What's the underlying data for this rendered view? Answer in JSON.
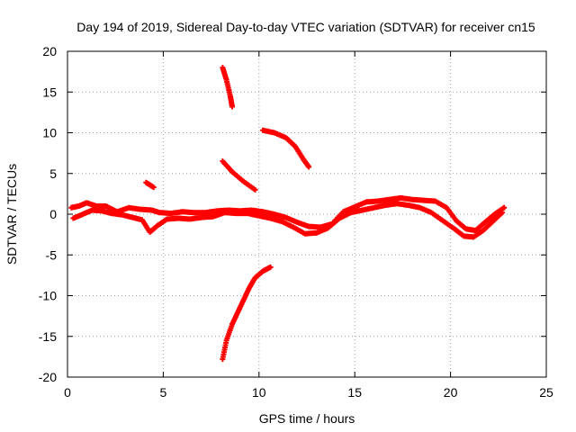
{
  "chart_data": {
    "type": "scatter",
    "title": "Day 194 of 2019, Sidereal Day-to-day VTEC variation (SDTVAR) for receiver cn15",
    "xlabel": "GPS time / hours",
    "ylabel": "SDTVAR / TECUs",
    "xlim": [
      0,
      25
    ],
    "ylim": [
      -20,
      20
    ],
    "xticks": [
      0,
      5,
      10,
      15,
      20,
      25
    ],
    "xtick_labels": [
      "0",
      "5",
      "10",
      "15",
      "20",
      "25"
    ],
    "yticks": [
      -20,
      -15,
      -10,
      -5,
      0,
      5,
      10,
      15,
      20
    ],
    "ytick_labels": [
      "-20",
      "-15",
      "-10",
      "-5",
      "0",
      "5",
      "10",
      "15",
      "20"
    ],
    "grid": true,
    "series_color": "#ff0000",
    "marker": "plus",
    "series": [
      {
        "name": "main-band-upper",
        "points": [
          [
            0.2,
            0.8
          ],
          [
            0.6,
            1.0
          ],
          [
            1.0,
            1.4
          ],
          [
            1.5,
            1.0
          ],
          [
            2.0,
            1.0
          ],
          [
            2.6,
            0.3
          ],
          [
            3.2,
            0.8
          ],
          [
            3.8,
            0.6
          ],
          [
            4.4,
            0.5
          ],
          [
            4.8,
            0.2
          ],
          [
            5.4,
            0.1
          ],
          [
            6.0,
            0.3
          ],
          [
            6.6,
            0.2
          ],
          [
            7.2,
            0.2
          ],
          [
            7.8,
            0.4
          ],
          [
            8.4,
            0.5
          ],
          [
            9.0,
            0.4
          ],
          [
            9.6,
            0.5
          ],
          [
            10.2,
            0.3
          ],
          [
            10.8,
            0.0
          ],
          [
            11.4,
            -0.4
          ],
          [
            12.0,
            -1.0
          ],
          [
            12.6,
            -1.5
          ],
          [
            13.2,
            -1.6
          ],
          [
            13.8,
            -1.2
          ],
          [
            14.4,
            0.3
          ],
          [
            15.0,
            0.9
          ],
          [
            15.6,
            1.5
          ],
          [
            16.2,
            1.6
          ],
          [
            16.8,
            1.8
          ],
          [
            17.4,
            2.0
          ],
          [
            18.0,
            1.8
          ],
          [
            18.6,
            1.7
          ],
          [
            19.2,
            1.6
          ],
          [
            19.8,
            0.8
          ],
          [
            20.3,
            -0.8
          ],
          [
            20.8,
            -1.8
          ],
          [
            21.3,
            -2.0
          ],
          [
            21.8,
            -1.0
          ],
          [
            22.3,
            0.0
          ],
          [
            22.8,
            0.8
          ]
        ]
      },
      {
        "name": "main-band-lower",
        "points": [
          [
            0.3,
            -0.5
          ],
          [
            0.8,
            0.0
          ],
          [
            1.3,
            0.5
          ],
          [
            1.8,
            0.4
          ],
          [
            2.3,
            0.1
          ],
          [
            2.9,
            -0.1
          ],
          [
            3.4,
            -0.4
          ],
          [
            3.9,
            -0.7
          ],
          [
            4.3,
            -2.2
          ],
          [
            4.7,
            -1.4
          ],
          [
            5.2,
            -0.6
          ],
          [
            5.8,
            -0.5
          ],
          [
            6.4,
            -0.6
          ],
          [
            7.0,
            -0.4
          ],
          [
            7.6,
            -0.3
          ],
          [
            8.2,
            0.2
          ],
          [
            8.8,
            0.1
          ],
          [
            9.4,
            0.1
          ],
          [
            10.0,
            -0.2
          ],
          [
            10.6,
            -0.5
          ],
          [
            11.2,
            -0.9
          ],
          [
            11.8,
            -1.6
          ],
          [
            12.4,
            -2.4
          ],
          [
            13.0,
            -2.3
          ],
          [
            13.6,
            -1.7
          ],
          [
            14.2,
            -0.5
          ],
          [
            14.8,
            0.2
          ],
          [
            15.4,
            0.5
          ],
          [
            16.0,
            0.8
          ],
          [
            16.6,
            1.1
          ],
          [
            17.2,
            1.3
          ],
          [
            17.8,
            1.1
          ],
          [
            18.4,
            0.8
          ],
          [
            19.0,
            0.2
          ],
          [
            19.6,
            -0.8
          ],
          [
            20.2,
            -1.8
          ],
          [
            20.7,
            -2.7
          ],
          [
            21.2,
            -2.8
          ],
          [
            21.7,
            -2.0
          ],
          [
            22.2,
            -0.9
          ],
          [
            22.7,
            0.2
          ]
        ]
      },
      {
        "name": "arc-low",
        "points": [
          [
            8.1,
            -17.8
          ],
          [
            8.3,
            -15.5
          ],
          [
            8.6,
            -13.5
          ],
          [
            8.9,
            -12.0
          ],
          [
            9.2,
            -10.5
          ],
          [
            9.5,
            -9.0
          ],
          [
            9.8,
            -7.8
          ],
          [
            10.2,
            -7.0
          ],
          [
            10.6,
            -6.5
          ]
        ]
      },
      {
        "name": "arc-high",
        "points": [
          [
            8.1,
            18.0
          ],
          [
            8.3,
            16.5
          ],
          [
            8.5,
            14.5
          ],
          [
            8.6,
            13.2
          ]
        ]
      },
      {
        "name": "arc-mid",
        "points": [
          [
            8.1,
            6.5
          ],
          [
            8.6,
            5.2
          ],
          [
            9.2,
            4.0
          ],
          [
            9.8,
            3.0
          ]
        ]
      },
      {
        "name": "arc-upper-right",
        "points": [
          [
            10.2,
            10.3
          ],
          [
            10.8,
            10.0
          ],
          [
            11.4,
            9.4
          ],
          [
            11.9,
            8.3
          ],
          [
            12.3,
            6.8
          ],
          [
            12.6,
            5.8
          ]
        ]
      },
      {
        "name": "short-segment",
        "points": [
          [
            4.1,
            3.9
          ],
          [
            4.5,
            3.3
          ]
        ]
      }
    ]
  }
}
